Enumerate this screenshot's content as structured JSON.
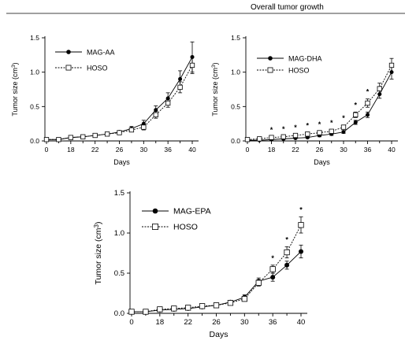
{
  "header": {
    "title": "Overall tumor growth"
  },
  "chart_data": [
    {
      "type": "line",
      "xlabel": "Days",
      "ylabel_main": "Tumor size (cm",
      "ylabel_sup": "3",
      "ylabel_end": ")",
      "xticks": [
        "0",
        "18",
        "22",
        "26",
        "30",
        "36",
        "40"
      ],
      "yticks": [
        "0.0",
        "0.5",
        "1.0",
        "1.5"
      ],
      "ylim": [
        0,
        1.5
      ],
      "legend_position": "top-left",
      "series": [
        {
          "name": "MAG-AA",
          "marker": "filled-circle",
          "line": "solid",
          "values": [
            0.02,
            0.02,
            0.05,
            0.06,
            0.08,
            0.1,
            0.13,
            0.18,
            0.25,
            0.45,
            0.62,
            0.9,
            1.22
          ],
          "errors": [
            0.01,
            0.01,
            0.01,
            0.01,
            0.02,
            0.02,
            0.02,
            0.03,
            0.05,
            0.06,
            0.08,
            0.12,
            0.22
          ]
        },
        {
          "name": "HOSO",
          "marker": "open-square",
          "line": "dotted",
          "values": [
            0.02,
            0.02,
            0.05,
            0.06,
            0.08,
            0.1,
            0.12,
            0.16,
            0.2,
            0.38,
            0.55,
            0.78,
            1.1
          ],
          "errors": [
            0.01,
            0.01,
            0.01,
            0.01,
            0.01,
            0.02,
            0.02,
            0.02,
            0.04,
            0.05,
            0.06,
            0.08,
            0.12
          ]
        }
      ],
      "significance": []
    },
    {
      "type": "line",
      "xlabel": "Days",
      "ylabel_main": "Tumor size (cm",
      "ylabel_sup": "3",
      "ylabel_end": ")",
      "xticks": [
        "0",
        "18",
        "22",
        "26",
        "30",
        "36",
        "40"
      ],
      "yticks": [
        "0.0",
        "0.5",
        "1.0",
        "1.5"
      ],
      "ylim": [
        0,
        1.5
      ],
      "legend_position": "top-left",
      "series": [
        {
          "name": "MAG-DHA",
          "marker": "filled-circle",
          "line": "solid",
          "values": [
            0.01,
            0.01,
            0.02,
            0.03,
            0.04,
            0.05,
            0.08,
            0.1,
            0.13,
            0.27,
            0.38,
            0.68,
            1.0
          ],
          "errors": [
            0.01,
            0.01,
            0.01,
            0.01,
            0.01,
            0.01,
            0.02,
            0.02,
            0.02,
            0.03,
            0.04,
            0.06,
            0.1
          ]
        },
        {
          "name": "HOSO",
          "marker": "open-square",
          "line": "dotted",
          "values": [
            0.02,
            0.03,
            0.05,
            0.06,
            0.08,
            0.1,
            0.12,
            0.14,
            0.2,
            0.38,
            0.55,
            0.76,
            1.1
          ],
          "errors": [
            0.01,
            0.01,
            0.01,
            0.01,
            0.01,
            0.02,
            0.02,
            0.02,
            0.03,
            0.04,
            0.06,
            0.08,
            0.1
          ]
        }
      ],
      "significance": [
        "",
        "",
        "*",
        "*",
        "*",
        "*",
        "*",
        "*",
        "*",
        "*",
        "*",
        "",
        ""
      ]
    },
    {
      "type": "line",
      "xlabel": "Days",
      "ylabel_main": "Tumor size (cm",
      "ylabel_sup": "3",
      "ylabel_end": ")",
      "xticks": [
        "0",
        "18",
        "22",
        "26",
        "30",
        "36",
        "40"
      ],
      "yticks": [
        "0.0",
        "0.5",
        "1.0",
        "1.5"
      ],
      "ylim": [
        0,
        1.5
      ],
      "legend_position": "top-left",
      "series": [
        {
          "name": "MAG-EPA",
          "marker": "filled-circle",
          "line": "solid",
          "values": [
            0.02,
            0.02,
            0.04,
            0.05,
            0.06,
            0.08,
            0.1,
            0.14,
            0.2,
            0.4,
            0.45,
            0.6,
            0.77
          ],
          "errors": [
            0.01,
            0.01,
            0.01,
            0.01,
            0.01,
            0.02,
            0.02,
            0.02,
            0.03,
            0.04,
            0.05,
            0.05,
            0.08
          ]
        },
        {
          "name": "HOSO",
          "marker": "open-square",
          "line": "dotted",
          "values": [
            0.02,
            0.02,
            0.05,
            0.06,
            0.07,
            0.09,
            0.1,
            0.13,
            0.18,
            0.38,
            0.55,
            0.76,
            1.1
          ],
          "errors": [
            0.01,
            0.01,
            0.01,
            0.01,
            0.01,
            0.02,
            0.02,
            0.02,
            0.03,
            0.04,
            0.05,
            0.07,
            0.1
          ]
        }
      ],
      "significance": [
        "",
        "",
        "",
        "",
        "",
        "",
        "",
        "",
        "",
        "",
        "*",
        "*",
        "*"
      ]
    }
  ]
}
